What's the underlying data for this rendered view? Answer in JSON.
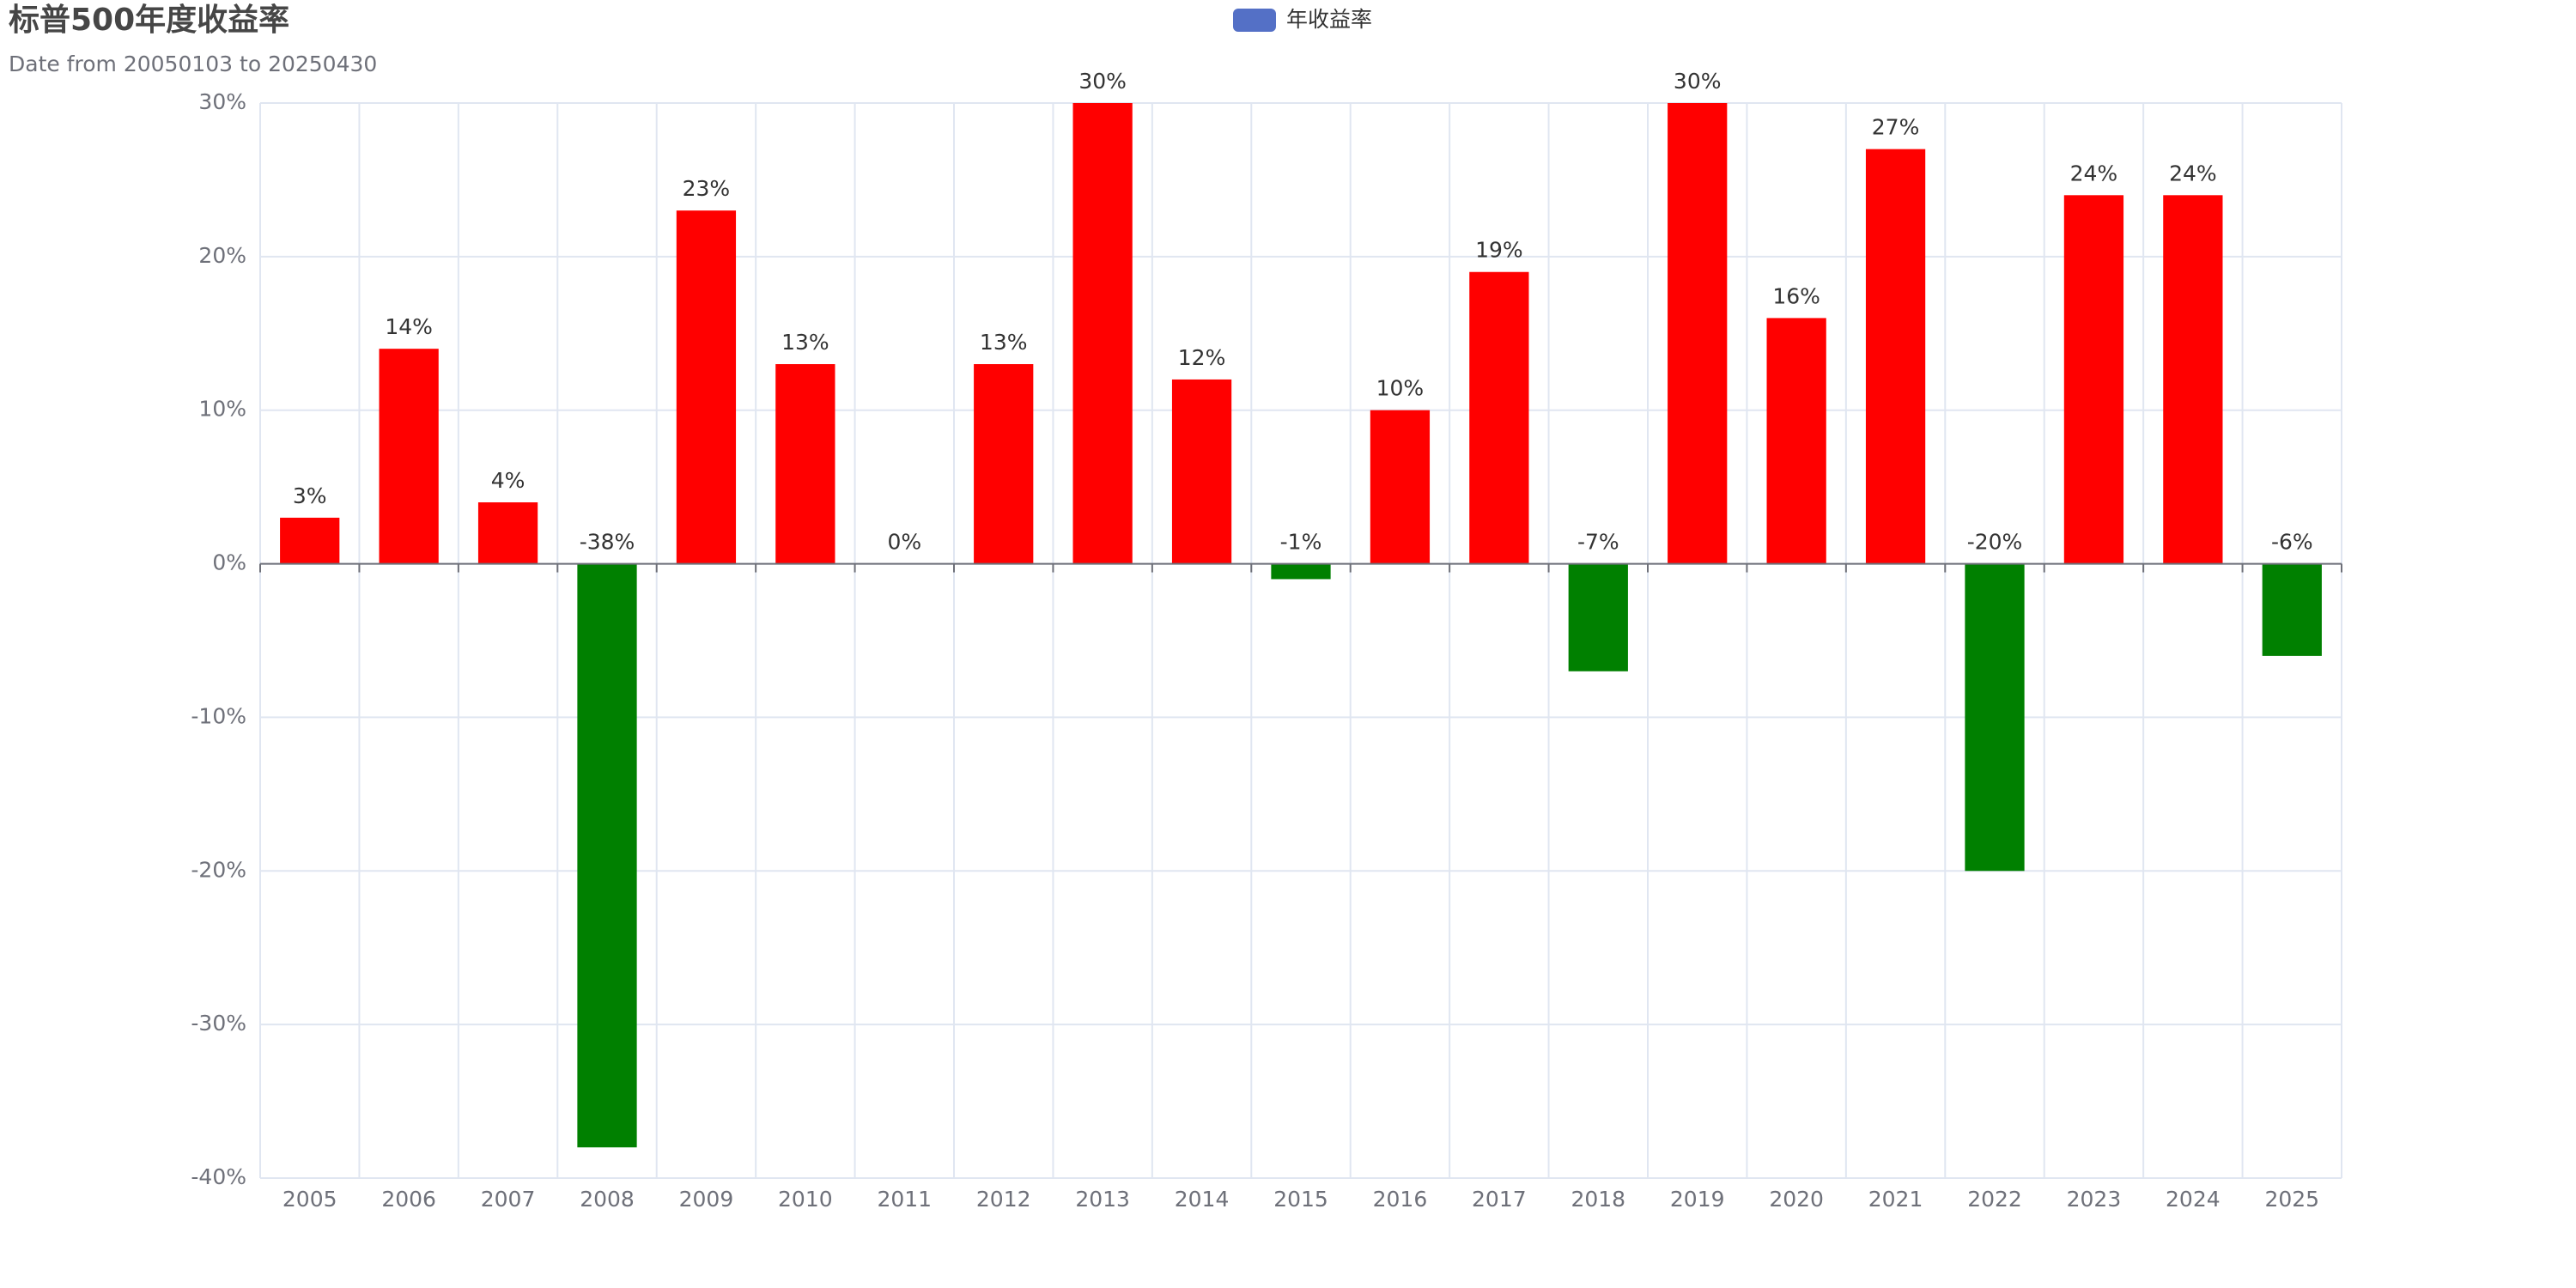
{
  "chart_data": {
    "type": "bar",
    "title": "标普500年度收益率",
    "subtitle": "Date from 20050103 to 20250430",
    "legend": {
      "name": "年收益率",
      "color": "#5470c6",
      "position": "top-center"
    },
    "categories": [
      "2005",
      "2006",
      "2007",
      "2008",
      "2009",
      "2010",
      "2011",
      "2012",
      "2013",
      "2014",
      "2015",
      "2016",
      "2017",
      "2018",
      "2019",
      "2020",
      "2021",
      "2022",
      "2023",
      "2024",
      "2025"
    ],
    "values": [
      3,
      14,
      4,
      -38,
      23,
      13,
      0,
      13,
      30,
      12,
      -1,
      10,
      19,
      -7,
      30,
      16,
      27,
      -20,
      24,
      24,
      -6
    ],
    "value_labels": [
      "3%",
      "14%",
      "4%",
      "-38%",
      "23%",
      "13%",
      "0%",
      "13%",
      "30%",
      "12%",
      "-1%",
      "10%",
      "19%",
      "-7%",
      "30%",
      "16%",
      "27%",
      "-20%",
      "24%",
      "24%",
      "-6%"
    ],
    "positive_color": "#ff0000",
    "negative_color": "#008000",
    "ylim": [
      -40,
      30
    ],
    "yticks": [
      {
        "value": -40,
        "label": "-40%"
      },
      {
        "value": -30,
        "label": "-30%"
      },
      {
        "value": -20,
        "label": "-20%"
      },
      {
        "value": -10,
        "label": "-10%"
      },
      {
        "value": 0,
        "label": "0%"
      },
      {
        "value": 10,
        "label": "10%"
      },
      {
        "value": 20,
        "label": "20%"
      },
      {
        "value": 30,
        "label": "30%"
      }
    ],
    "grid": true
  }
}
